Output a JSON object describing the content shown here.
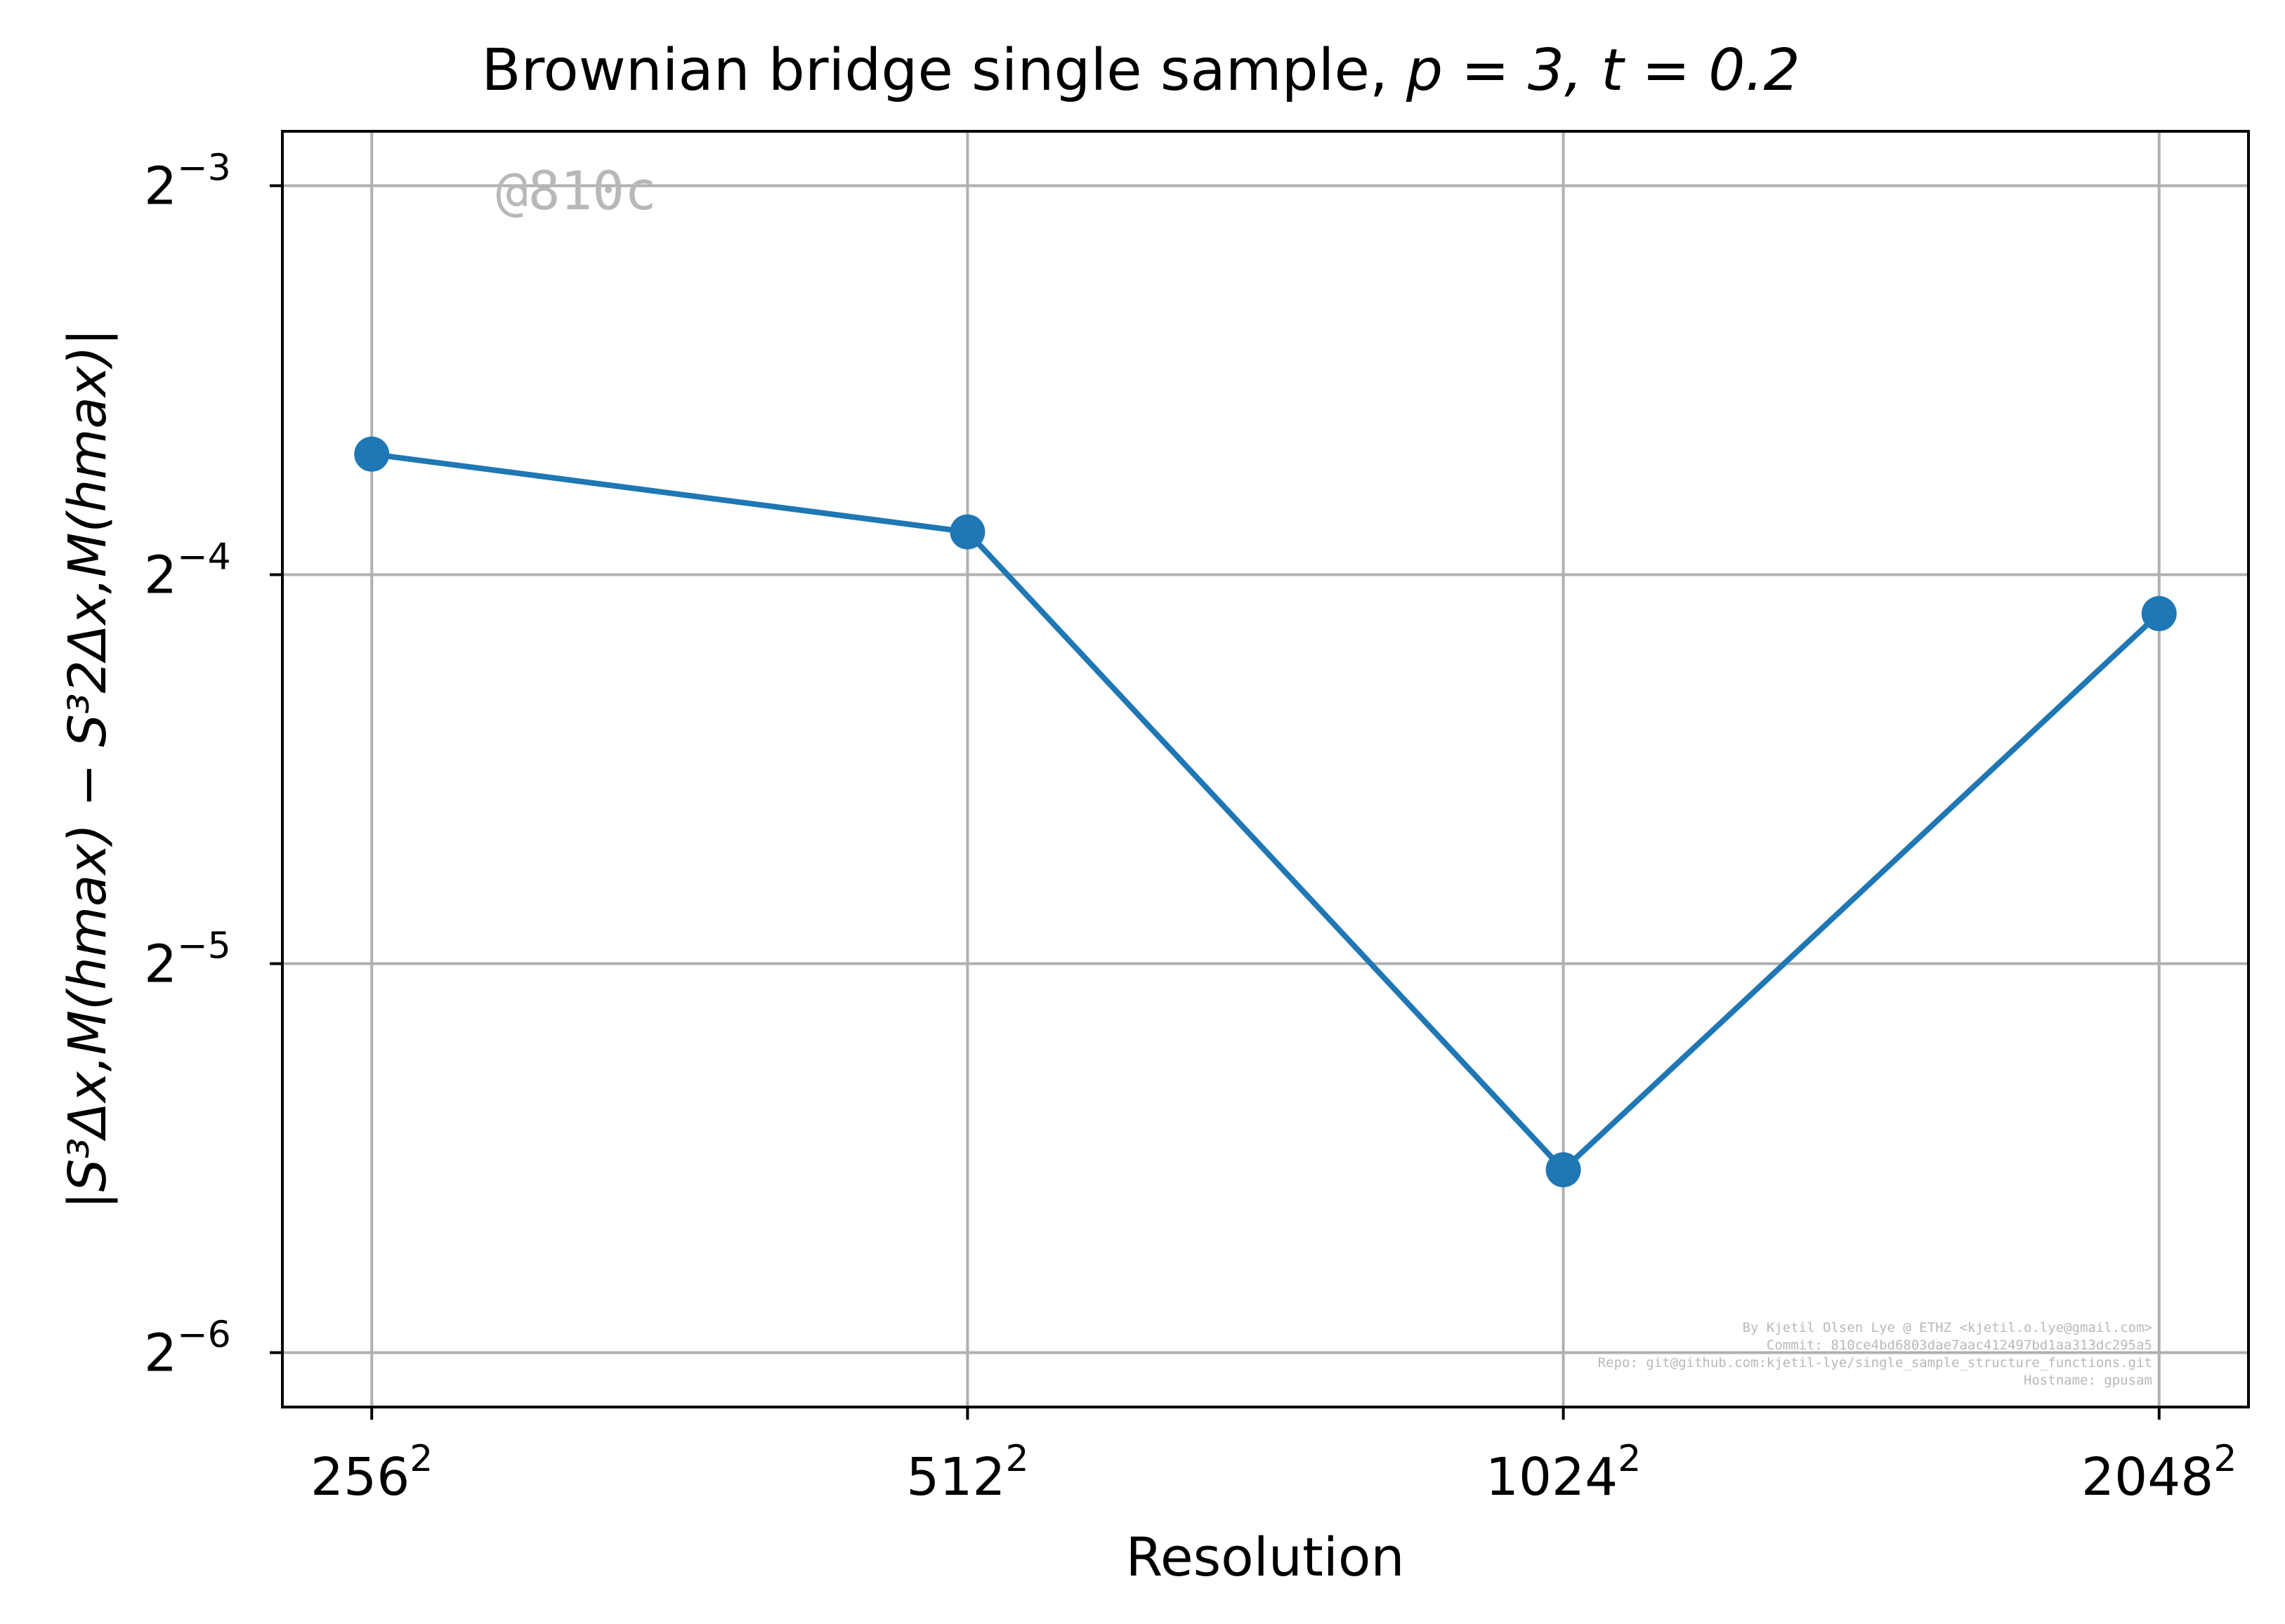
{
  "chart_data": {
    "type": "line",
    "title_main": "Brownian bridge single sample, ",
    "title_math": "p = 3, t = 0.2",
    "xlabel": "Resolution",
    "ylabel": "|S³Δx,M(hmax) − S³2Δx,M(hmax)|",
    "x_ticks": [
      {
        "base": "256",
        "sup": "2"
      },
      {
        "base": "512",
        "sup": "2"
      },
      {
        "base": "1024",
        "sup": "2"
      },
      {
        "base": "2048",
        "sup": "2"
      }
    ],
    "y_ticks": [
      {
        "base": "2",
        "sup": "−3",
        "exp": -3
      },
      {
        "base": "2",
        "sup": "−4",
        "exp": -4
      },
      {
        "base": "2",
        "sup": "−5",
        "exp": -5
      },
      {
        "base": "2",
        "sup": "−6",
        "exp": -6
      }
    ],
    "x": [
      256,
      512,
      1024,
      2048
    ],
    "y_log2": [
      -3.69,
      -3.89,
      -5.53,
      -4.1
    ],
    "y_scale": "log2",
    "x_scale": "log2",
    "ylim_log2": [
      -6.14,
      -2.86
    ],
    "xlim_log2": [
      7.85,
      11.15
    ],
    "grid": true,
    "series_color": "#1f77b4",
    "watermark": "@810c",
    "credits": [
      "By Kjetil Olsen Lye @ ETHZ <kjetil.o.lye@gmail.com>",
      "Commit: 810ce4bd6803dae7aac412497bd1aa313dc295a5",
      "Repo: git@github.com:kjetil-lye/single_sample_structure_functions.git",
      "Hostname: gpusam"
    ]
  }
}
